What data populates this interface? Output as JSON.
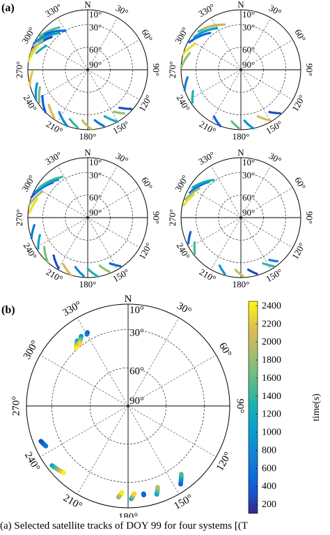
{
  "panels": {
    "a_label": "(a)",
    "b_label": "(b)"
  },
  "caption": "(a) Selected satellite tracks of DOY 99 for four systems [(T",
  "chart_data": [
    {
      "type": "scatter",
      "subtype": "polar-skyplot",
      "panel": "a1",
      "north_label": "N",
      "azimuth_labels": [
        "30°",
        "60°",
        "90°",
        "120°",
        "150°",
        "180°",
        "210°",
        "240°",
        "270°",
        "300°",
        "330°"
      ],
      "elevation_labels": [
        "10°",
        "30°",
        "60°",
        "90°"
      ],
      "color_scale": "time(s)",
      "tracks": [
        {
          "az": [
            292,
            312
          ],
          "el": [
            12,
            25
          ],
          "t": 300
        },
        {
          "az": [
            296,
            318
          ],
          "el": [
            10,
            22
          ],
          "t": 700
        },
        {
          "az": [
            300,
            322
          ],
          "el": [
            14,
            28
          ],
          "t": 1100
        },
        {
          "az": [
            305,
            326
          ],
          "el": [
            12,
            22
          ],
          "t": 1500
        },
        {
          "az": [
            285,
            303
          ],
          "el": [
            10,
            18
          ],
          "t": 1900
        },
        {
          "az": [
            278,
            295
          ],
          "el": [
            10,
            16
          ],
          "t": 2300
        },
        {
          "az": [
            310,
            330
          ],
          "el": [
            16,
            30
          ],
          "t": 500
        },
        {
          "az": [
            288,
            300
          ],
          "el": [
            18,
            26
          ],
          "t": 1300
        },
        {
          "az": [
            240,
            255
          ],
          "el": [
            10,
            20
          ],
          "t": 900
        },
        {
          "az": [
            236,
            250
          ],
          "el": [
            12,
            22
          ],
          "t": 1700
        },
        {
          "az": [
            225,
            240
          ],
          "el": [
            10,
            20
          ],
          "t": 400
        },
        {
          "az": [
            215,
            228
          ],
          "el": [
            12,
            20
          ],
          "t": 2100
        },
        {
          "az": [
            200,
            214
          ],
          "el": [
            10,
            22
          ],
          "t": 800
        },
        {
          "az": [
            190,
            200
          ],
          "el": [
            12,
            20
          ],
          "t": 1400
        },
        {
          "az": [
            176,
            186
          ],
          "el": [
            10,
            22
          ],
          "t": 2000
        },
        {
          "az": [
            164,
            172
          ],
          "el": [
            12,
            22
          ],
          "t": 600
        },
        {
          "az": [
            150,
            160
          ],
          "el": [
            10,
            24
          ],
          "t": 1200
        },
        {
          "az": [
            140,
            148
          ],
          "el": [
            14,
            24
          ],
          "t": 1800
        },
        {
          "az": [
            132,
            140
          ],
          "el": [
            12,
            24
          ],
          "t": 300
        },
        {
          "az": [
            255,
            268
          ],
          "el": [
            10,
            16
          ],
          "t": 2200
        }
      ]
    },
    {
      "type": "scatter",
      "subtype": "polar-skyplot",
      "panel": "a2",
      "north_label": "N",
      "azimuth_labels": [
        "30°",
        "60°",
        "90°",
        "120°",
        "150°",
        "180°",
        "210°",
        "240°",
        "270°",
        "300°",
        "330°"
      ],
      "elevation_labels": [
        "10°",
        "30°",
        "60°",
        "90°"
      ],
      "color_scale": "time(s)",
      "tracks": [
        {
          "az": [
            298,
            320
          ],
          "el": [
            12,
            26
          ],
          "t": 500
        },
        {
          "az": [
            305,
            330
          ],
          "el": [
            14,
            26
          ],
          "t": 1000
        },
        {
          "az": [
            312,
            335
          ],
          "el": [
            14,
            24
          ],
          "t": 1500
        },
        {
          "az": [
            318,
            340
          ],
          "el": [
            16,
            26
          ],
          "t": 2000
        },
        {
          "az": [
            285,
            300
          ],
          "el": [
            10,
            20
          ],
          "t": 2300
        },
        {
          "az": [
            272,
            288
          ],
          "el": [
            10,
            18
          ],
          "t": 1800
        },
        {
          "az": [
            250,
            262
          ],
          "el": [
            10,
            18
          ],
          "t": 700
        },
        {
          "az": [
            236,
            246
          ],
          "el": [
            12,
            20
          ],
          "t": 1300
        },
        {
          "az": [
            200,
            210
          ],
          "el": [
            10,
            18
          ],
          "t": 400
        },
        {
          "az": [
            182,
            190
          ],
          "el": [
            12,
            20
          ],
          "t": 1600
        },
        {
          "az": [
            168,
            176
          ],
          "el": [
            10,
            22
          ],
          "t": 900
        },
        {
          "az": [
            150,
            160
          ],
          "el": [
            12,
            24
          ],
          "t": 2100
        },
        {
          "az": [
            138,
            146
          ],
          "el": [
            12,
            22
          ],
          "t": 300
        }
      ]
    },
    {
      "type": "scatter",
      "subtype": "polar-skyplot",
      "panel": "a3",
      "north_label": "N",
      "azimuth_labels": [
        "30°",
        "60°",
        "90°",
        "120°",
        "150°",
        "180°",
        "210°",
        "240°",
        "270°",
        "300°",
        "330°"
      ],
      "elevation_labels": [
        "10°",
        "30°",
        "60°",
        "90°"
      ],
      "color_scale": "time(s)",
      "tracks": [
        {
          "az": [
            290,
            315
          ],
          "el": [
            10,
            24
          ],
          "t": 400
        },
        {
          "az": [
            296,
            322
          ],
          "el": [
            12,
            26
          ],
          "t": 900
        },
        {
          "az": [
            302,
            328
          ],
          "el": [
            14,
            26
          ],
          "t": 1400
        },
        {
          "az": [
            282,
            300
          ],
          "el": [
            10,
            20
          ],
          "t": 1900
        },
        {
          "az": [
            275,
            290
          ],
          "el": [
            12,
            18
          ],
          "t": 2300
        },
        {
          "az": [
            250,
            262
          ],
          "el": [
            10,
            18
          ],
          "t": 600
        },
        {
          "az": [
            238,
            250
          ],
          "el": [
            12,
            22
          ],
          "t": 1100
        },
        {
          "az": [
            222,
            236
          ],
          "el": [
            10,
            20
          ],
          "t": 1700
        },
        {
          "az": [
            210,
            222
          ],
          "el": [
            12,
            22
          ],
          "t": 300
        },
        {
          "az": [
            196,
            208
          ],
          "el": [
            10,
            20
          ],
          "t": 2100
        },
        {
          "az": [
            184,
            194
          ],
          "el": [
            12,
            22
          ],
          "t": 800
        },
        {
          "az": [
            170,
            180
          ],
          "el": [
            10,
            22
          ],
          "t": 1300
        },
        {
          "az": [
            158,
            166
          ],
          "el": [
            12,
            24
          ],
          "t": 1800
        },
        {
          "az": [
            146,
            154
          ],
          "el": [
            12,
            22
          ],
          "t": 500
        }
      ]
    },
    {
      "type": "scatter",
      "subtype": "polar-skyplot",
      "panel": "a4",
      "north_label": "N",
      "azimuth_labels": [
        "30°",
        "60°",
        "90°",
        "120°",
        "150°",
        "180°",
        "210°",
        "240°",
        "270°",
        "300°",
        "330°"
      ],
      "elevation_labels": [
        "10°",
        "30°",
        "60°",
        "90°"
      ],
      "color_scale": "time(s)",
      "tracks": [
        {
          "az": [
            296,
            318
          ],
          "el": [
            14,
            26
          ],
          "t": 600
        },
        {
          "az": [
            302,
            324
          ],
          "el": [
            14,
            28
          ],
          "t": 1200
        },
        {
          "az": [
            288,
            305
          ],
          "el": [
            12,
            22
          ],
          "t": 1800
        },
        {
          "az": [
            282,
            296
          ],
          "el": [
            12,
            20
          ],
          "t": 2300
        },
        {
          "az": [
            244,
            254
          ],
          "el": [
            12,
            20
          ],
          "t": 400
        },
        {
          "az": [
            232,
            242
          ],
          "el": [
            12,
            20
          ],
          "t": 1500
        },
        {
          "az": [
            196,
            204
          ],
          "el": [
            12,
            20
          ],
          "t": 900
        },
        {
          "az": [
            178,
            186
          ],
          "el": [
            12,
            20
          ],
          "t": 2000
        },
        {
          "az": [
            164,
            172
          ],
          "el": [
            12,
            20
          ],
          "t": 300
        },
        {
          "az": [
            146,
            154
          ],
          "el": [
            12,
            22
          ],
          "t": 1400
        },
        {
          "az": [
            140,
            146
          ],
          "el": [
            14,
            22
          ],
          "t": 700
        }
      ]
    },
    {
      "type": "scatter",
      "subtype": "polar-skyplot",
      "panel": "b",
      "north_label": "N",
      "azimuth_labels": [
        "30°",
        "60°",
        "90°",
        "120°",
        "150°",
        "180°",
        "210°",
        "240°",
        "270°",
        "300°",
        "330°"
      ],
      "elevation_labels": [
        "10°",
        "30°",
        "60°",
        "90°"
      ],
      "colorbar": {
        "label": "time(s)",
        "ticks": [
          200,
          400,
          600,
          800,
          1000,
          1200,
          1400,
          1600,
          1800,
          2000,
          2200,
          2400
        ],
        "min": 100,
        "max": 2450
      },
      "tracks": [
        {
          "az": [
            322,
            318
          ],
          "el": [
            25,
            29
          ],
          "t0": 900,
          "t1": 2400
        },
        {
          "az": [
            326,
            322
          ],
          "el": [
            24,
            28
          ],
          "t0": 800,
          "t1": 2300
        },
        {
          "az": [
            331,
            330
          ],
          "el": [
            24,
            25
          ],
          "t0": 300,
          "t1": 600
        },
        {
          "az": [
            248,
            244
          ],
          "el": [
            16,
            18
          ],
          "t0": 200,
          "t1": 600
        },
        {
          "az": [
            232,
            224
          ],
          "el": [
            14,
            17
          ],
          "t0": 1000,
          "t1": 2400
        },
        {
          "az": [
            186,
            184
          ],
          "el": [
            18,
            22
          ],
          "t0": 1600,
          "t1": 2400
        },
        {
          "az": [
            178,
            176
          ],
          "el": [
            17,
            21
          ],
          "t0": 1000,
          "t1": 2300
        },
        {
          "az": [
            170,
            170
          ],
          "el": [
            19,
            20
          ],
          "t0": 300,
          "t1": 500
        },
        {
          "az": [
            162,
            160
          ],
          "el": [
            17,
            22
          ],
          "t0": 900,
          "t1": 1900
        },
        {
          "az": [
            146,
            142
          ],
          "el": [
            16,
            22
          ],
          "t0": 200,
          "t1": 1500
        }
      ]
    }
  ]
}
